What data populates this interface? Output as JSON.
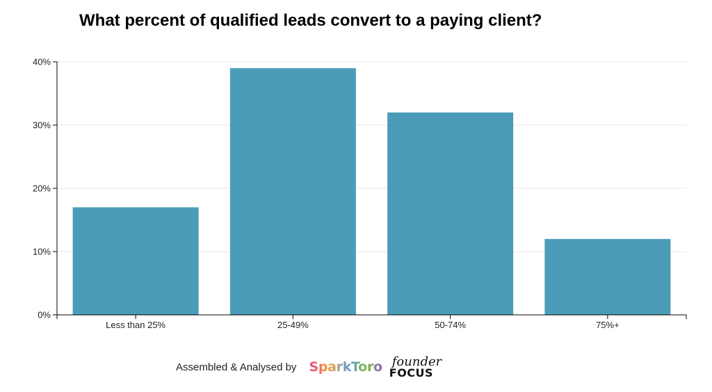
{
  "chart_data": {
    "type": "bar",
    "title": "What percent of qualified leads convert to a paying client?",
    "xlabel": "",
    "ylabel": "",
    "categories": [
      "Less than 25%",
      "25-49%",
      "50-74%",
      "75%+"
    ],
    "values": [
      17,
      39,
      32,
      12
    ],
    "ylim": [
      0,
      40
    ],
    "yticks": [
      0,
      10,
      20,
      30,
      40
    ],
    "ytick_labels": [
      "0%",
      "10%",
      "20%",
      "30%",
      "40%"
    ],
    "grid": true,
    "bar_color": "#4b9cb8"
  },
  "footer": {
    "credit": "Assembled & Analysed by",
    "logo_sparktoro": "SparkToro",
    "logo_founder_top": "founder",
    "logo_founder_bottom": "FOCUS"
  }
}
